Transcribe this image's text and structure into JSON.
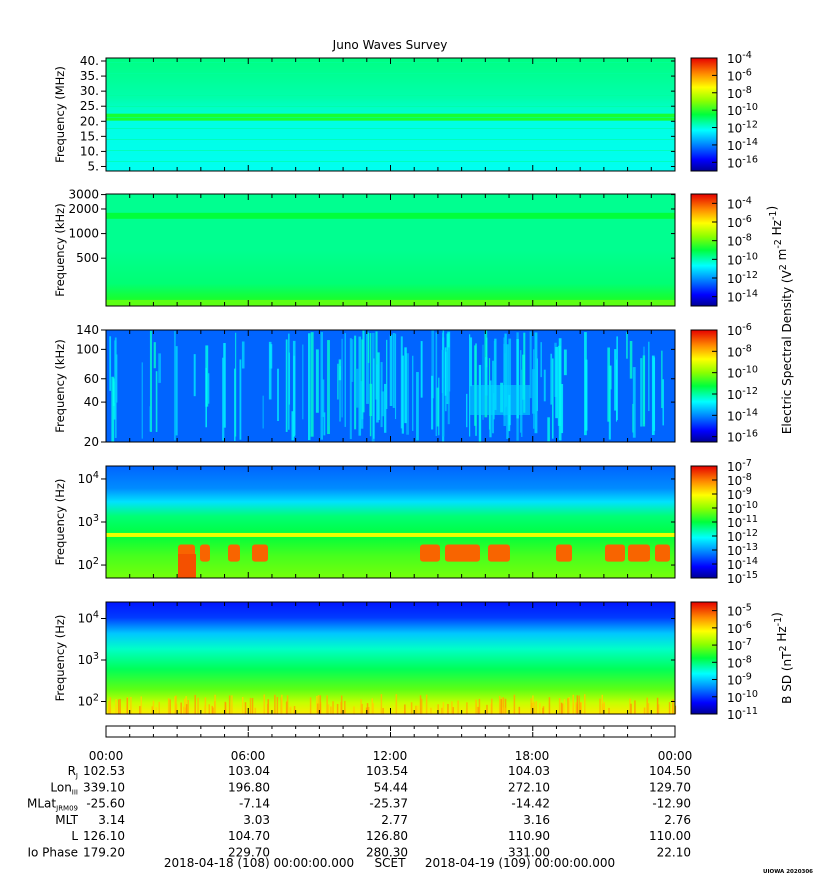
{
  "chart_data": {
    "type": "heatmap",
    "title": "Juno Waves Survey",
    "panels": [
      {
        "id": "hf-mhz",
        "ylabel": "Frequency (MHz)",
        "yscale": "linear",
        "ylim": [
          3.5,
          41
        ],
        "yticks": [
          {
            "v": 5,
            "label": "5."
          },
          {
            "v": 10,
            "label": "10."
          },
          {
            "v": 15,
            "label": "15."
          },
          {
            "v": 20,
            "label": "20."
          },
          {
            "v": 25,
            "label": "25."
          },
          {
            "v": 30,
            "label": "30."
          },
          {
            "v": 35,
            "label": "35."
          },
          {
            "v": 40,
            "label": "40."
          }
        ],
        "colorbar": {
          "title": "",
          "labels": [
            "10^-4",
            "10^-6",
            "10^-8",
            "10^-10",
            "10^-12",
            "10^-14",
            "10^-16"
          ],
          "range_exp": [
            -17,
            -4
          ]
        },
        "pattern": "flat-cyan-with-band-near-21MHz"
      },
      {
        "id": "hf-khz",
        "ylabel": "Frequency (kHz)",
        "yscale": "log",
        "ylim": [
          130,
          3050
        ],
        "yticks": [
          {
            "v": 500,
            "label": "500"
          },
          {
            "v": 1000,
            "label": "1000"
          },
          {
            "v": 2000,
            "label": "2000"
          },
          {
            "v": 3000,
            "label": "3000"
          }
        ],
        "colorbar": {
          "title": "Electric Spectral Density (V^2 m^-2 Hz^-1)",
          "labels": [
            "10^-4",
            "10^-6",
            "10^-8",
            "10^-10",
            "10^-12",
            "10^-14"
          ],
          "range_exp": [
            -15,
            -3
          ]
        },
        "pattern": "green-with-band-near-1600kHz"
      },
      {
        "id": "lf-khz",
        "ylabel": "Frequency (kHz)",
        "yscale": "log",
        "ylim": [
          20,
          140
        ],
        "yticks": [
          {
            "v": 20,
            "label": "20"
          },
          {
            "v": 40,
            "label": "40"
          },
          {
            "v": 60,
            "label": "60"
          },
          {
            "v": 100,
            "label": "100"
          },
          {
            "v": 140,
            "label": "140"
          }
        ],
        "colorbar": {
          "title": "",
          "labels": [
            "10^-6",
            "10^-8",
            "10^-10",
            "10^-12",
            "10^-14",
            "10^-16"
          ],
          "range_exp": [
            -16.5,
            -6
          ]
        },
        "pattern": "blue-streaks"
      },
      {
        "id": "vlf-hz",
        "ylabel": "Frequency (Hz)",
        "yscale": "log",
        "ylim": [
          50,
          20000
        ],
        "yticks": [
          {
            "v": 100,
            "label": "10^2"
          },
          {
            "v": 1000,
            "label": "10^3"
          },
          {
            "v": 10000,
            "label": "10^4"
          }
        ],
        "colorbar": {
          "title": "",
          "labels": [
            "10^-7",
            "10^-8",
            "10^-9",
            "10^-10",
            "10^-11",
            "10^-12",
            "10^-13",
            "10^-14",
            "10^-15"
          ],
          "range_exp": [
            -15,
            -7
          ]
        },
        "pattern": "layered-green-with-hot-bursts"
      },
      {
        "id": "mag-hz",
        "ylabel": "Frequency (Hz)",
        "yscale": "log",
        "ylim": [
          50,
          25000
        ],
        "yticks": [
          {
            "v": 100,
            "label": "10^2"
          },
          {
            "v": 1000,
            "label": "10^3"
          },
          {
            "v": 10000,
            "label": "10^4"
          }
        ],
        "colorbar": {
          "title": "B SD (nT^2 Hz^-1)",
          "labels": [
            "10^-5",
            "10^-6",
            "10^-7",
            "10^-8",
            "10^-9",
            "10^-10",
            "10^-11"
          ],
          "range_exp": [
            -11,
            -4.5
          ]
        },
        "pattern": "blue-top-green-yellow-bottom"
      }
    ],
    "x_time_ticks": [
      "00:00",
      "06:00",
      "12:00",
      "18:00",
      "00:00"
    ],
    "ephemeris": {
      "labels": [
        {
          "main": "R",
          "sub": "J"
        },
        {
          "main": "Lon",
          "sub": "III"
        },
        {
          "main": "MLat",
          "sub": "JRM09"
        },
        {
          "main": "MLT",
          "sub": ""
        },
        {
          "main": "L",
          "sub": ""
        },
        {
          "main": "Io Phase",
          "sub": ""
        }
      ],
      "rows": [
        [
          "102.53",
          "103.04",
          "103.54",
          "104.03",
          "104.50"
        ],
        [
          "339.10",
          "196.80",
          "54.44",
          "272.10",
          "129.70"
        ],
        [
          "-25.60",
          "-7.14",
          "-25.37",
          "-14.42",
          "-12.90"
        ],
        [
          "3.14",
          "3.03",
          "2.77",
          "3.16",
          "2.76"
        ],
        [
          "126.10",
          "104.70",
          "126.80",
          "110.90",
          "110.00"
        ],
        [
          "179.20",
          "229.70",
          "280.30",
          "331.00",
          "22.10"
        ]
      ]
    },
    "footer": {
      "start": "2018-04-18 (108) 00:00:00.000",
      "scet": "SCET",
      "end": "2018-04-19 (109) 00:00:00.000"
    },
    "stamp": "UIOWA 2020306"
  }
}
